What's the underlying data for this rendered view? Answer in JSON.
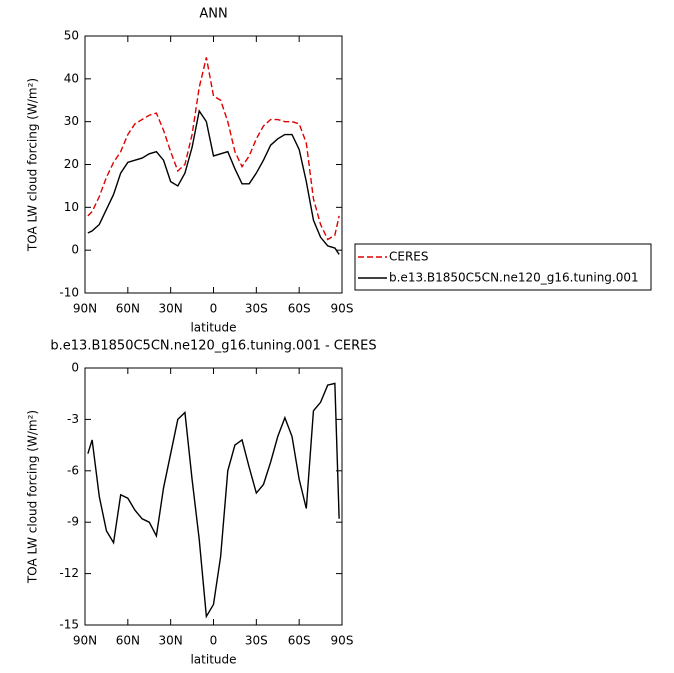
{
  "chart_data": [
    {
      "type": "line",
      "title": "ANN",
      "xlabel": "latitude",
      "ylabel": "TOA LW cloud forcing (W/m²)",
      "x": [
        88,
        85,
        80,
        75,
        70,
        65,
        60,
        55,
        50,
        45,
        40,
        35,
        30,
        25,
        20,
        15,
        10,
        5,
        0,
        -5,
        -10,
        -15,
        -20,
        -25,
        -30,
        -35,
        -40,
        -45,
        -50,
        -55,
        -60,
        -65,
        -70,
        -75,
        -80,
        -85,
        -88
      ],
      "series": [
        {
          "name": "CERES",
          "color": "#e00000",
          "linestyle": "dashed",
          "values": [
            8,
            9,
            12.5,
            17,
            20.5,
            23,
            27,
            29.5,
            30.5,
            31.5,
            32,
            28,
            23,
            18.5,
            20,
            27,
            38,
            45,
            36,
            35,
            30,
            23,
            19.5,
            22,
            26,
            29,
            30.5,
            30.5,
            30,
            30,
            29.5,
            25,
            12,
            6,
            2.5,
            3.5,
            8
          ]
        },
        {
          "name": "b.e13.B1850C5CN.ne120_g16.tuning.001",
          "color": "#000000",
          "linestyle": "solid",
          "values": [
            4,
            4.5,
            6,
            9.5,
            13,
            18,
            20.5,
            21,
            21.5,
            22.5,
            23,
            21,
            16,
            15,
            18,
            24,
            32.5,
            30,
            22,
            22.5,
            23,
            19,
            15.5,
            15.5,
            18,
            21,
            24.5,
            26,
            27,
            27,
            23.5,
            16,
            7,
            3,
            1,
            0.5,
            -1
          ]
        }
      ],
      "xlim": [
        90,
        -90
      ],
      "xticks": [
        {
          "value": 90,
          "label": "90N"
        },
        {
          "value": 60,
          "label": "60N"
        },
        {
          "value": 30,
          "label": "30N"
        },
        0,
        {
          "value": -30,
          "label": "30S"
        },
        {
          "value": -60,
          "label": "60S"
        },
        {
          "value": -90,
          "label": "90S"
        }
      ],
      "ylim": [
        -10,
        50
      ],
      "yticks": [
        -10,
        0,
        10,
        20,
        30,
        40,
        50
      ],
      "legend": "right"
    },
    {
      "type": "line",
      "title": "b.e13.B1850C5CN.ne120_g16.tuning.001 - CERES",
      "xlabel": "latitude",
      "ylabel": "TOA LW cloud forcing (W/m²)",
      "x": [
        88,
        85,
        80,
        75,
        70,
        65,
        60,
        55,
        50,
        45,
        40,
        35,
        30,
        25,
        20,
        15,
        10,
        5,
        0,
        -5,
        -10,
        -15,
        -20,
        -25,
        -30,
        -35,
        -40,
        -45,
        -50,
        -55,
        -60,
        -65,
        -70,
        -75,
        -80,
        -85,
        -88
      ],
      "series": [
        {
          "color": "#000000",
          "linestyle": "solid",
          "values": [
            -5,
            -4.2,
            -7.5,
            -9.5,
            -10.2,
            -7.4,
            -7.6,
            -8.3,
            -8.8,
            -9,
            -9.8,
            -7,
            -5,
            -3,
            -2.6,
            -6.5,
            -10,
            -14.5,
            -13.8,
            -11,
            -6,
            -4.5,
            -4.2,
            -5.8,
            -7.3,
            -6.8,
            -5.5,
            -4,
            -2.9,
            -4,
            -6.5,
            -8.2,
            -2.5,
            -2,
            -1,
            -0.9,
            -8.8
          ]
        }
      ],
      "xlim": [
        90,
        -90
      ],
      "xticks": [
        {
          "value": 90,
          "label": "90N"
        },
        {
          "value": 60,
          "label": "60N"
        },
        {
          "value": 30,
          "label": "30N"
        },
        0,
        {
          "value": -30,
          "label": "30S"
        },
        {
          "value": -60,
          "label": "60S"
        },
        {
          "value": -90,
          "label": "90S"
        }
      ],
      "ylim": [
        -15,
        0
      ],
      "yticks": [
        -15,
        -12,
        -9,
        -6,
        -3,
        0
      ]
    }
  ]
}
